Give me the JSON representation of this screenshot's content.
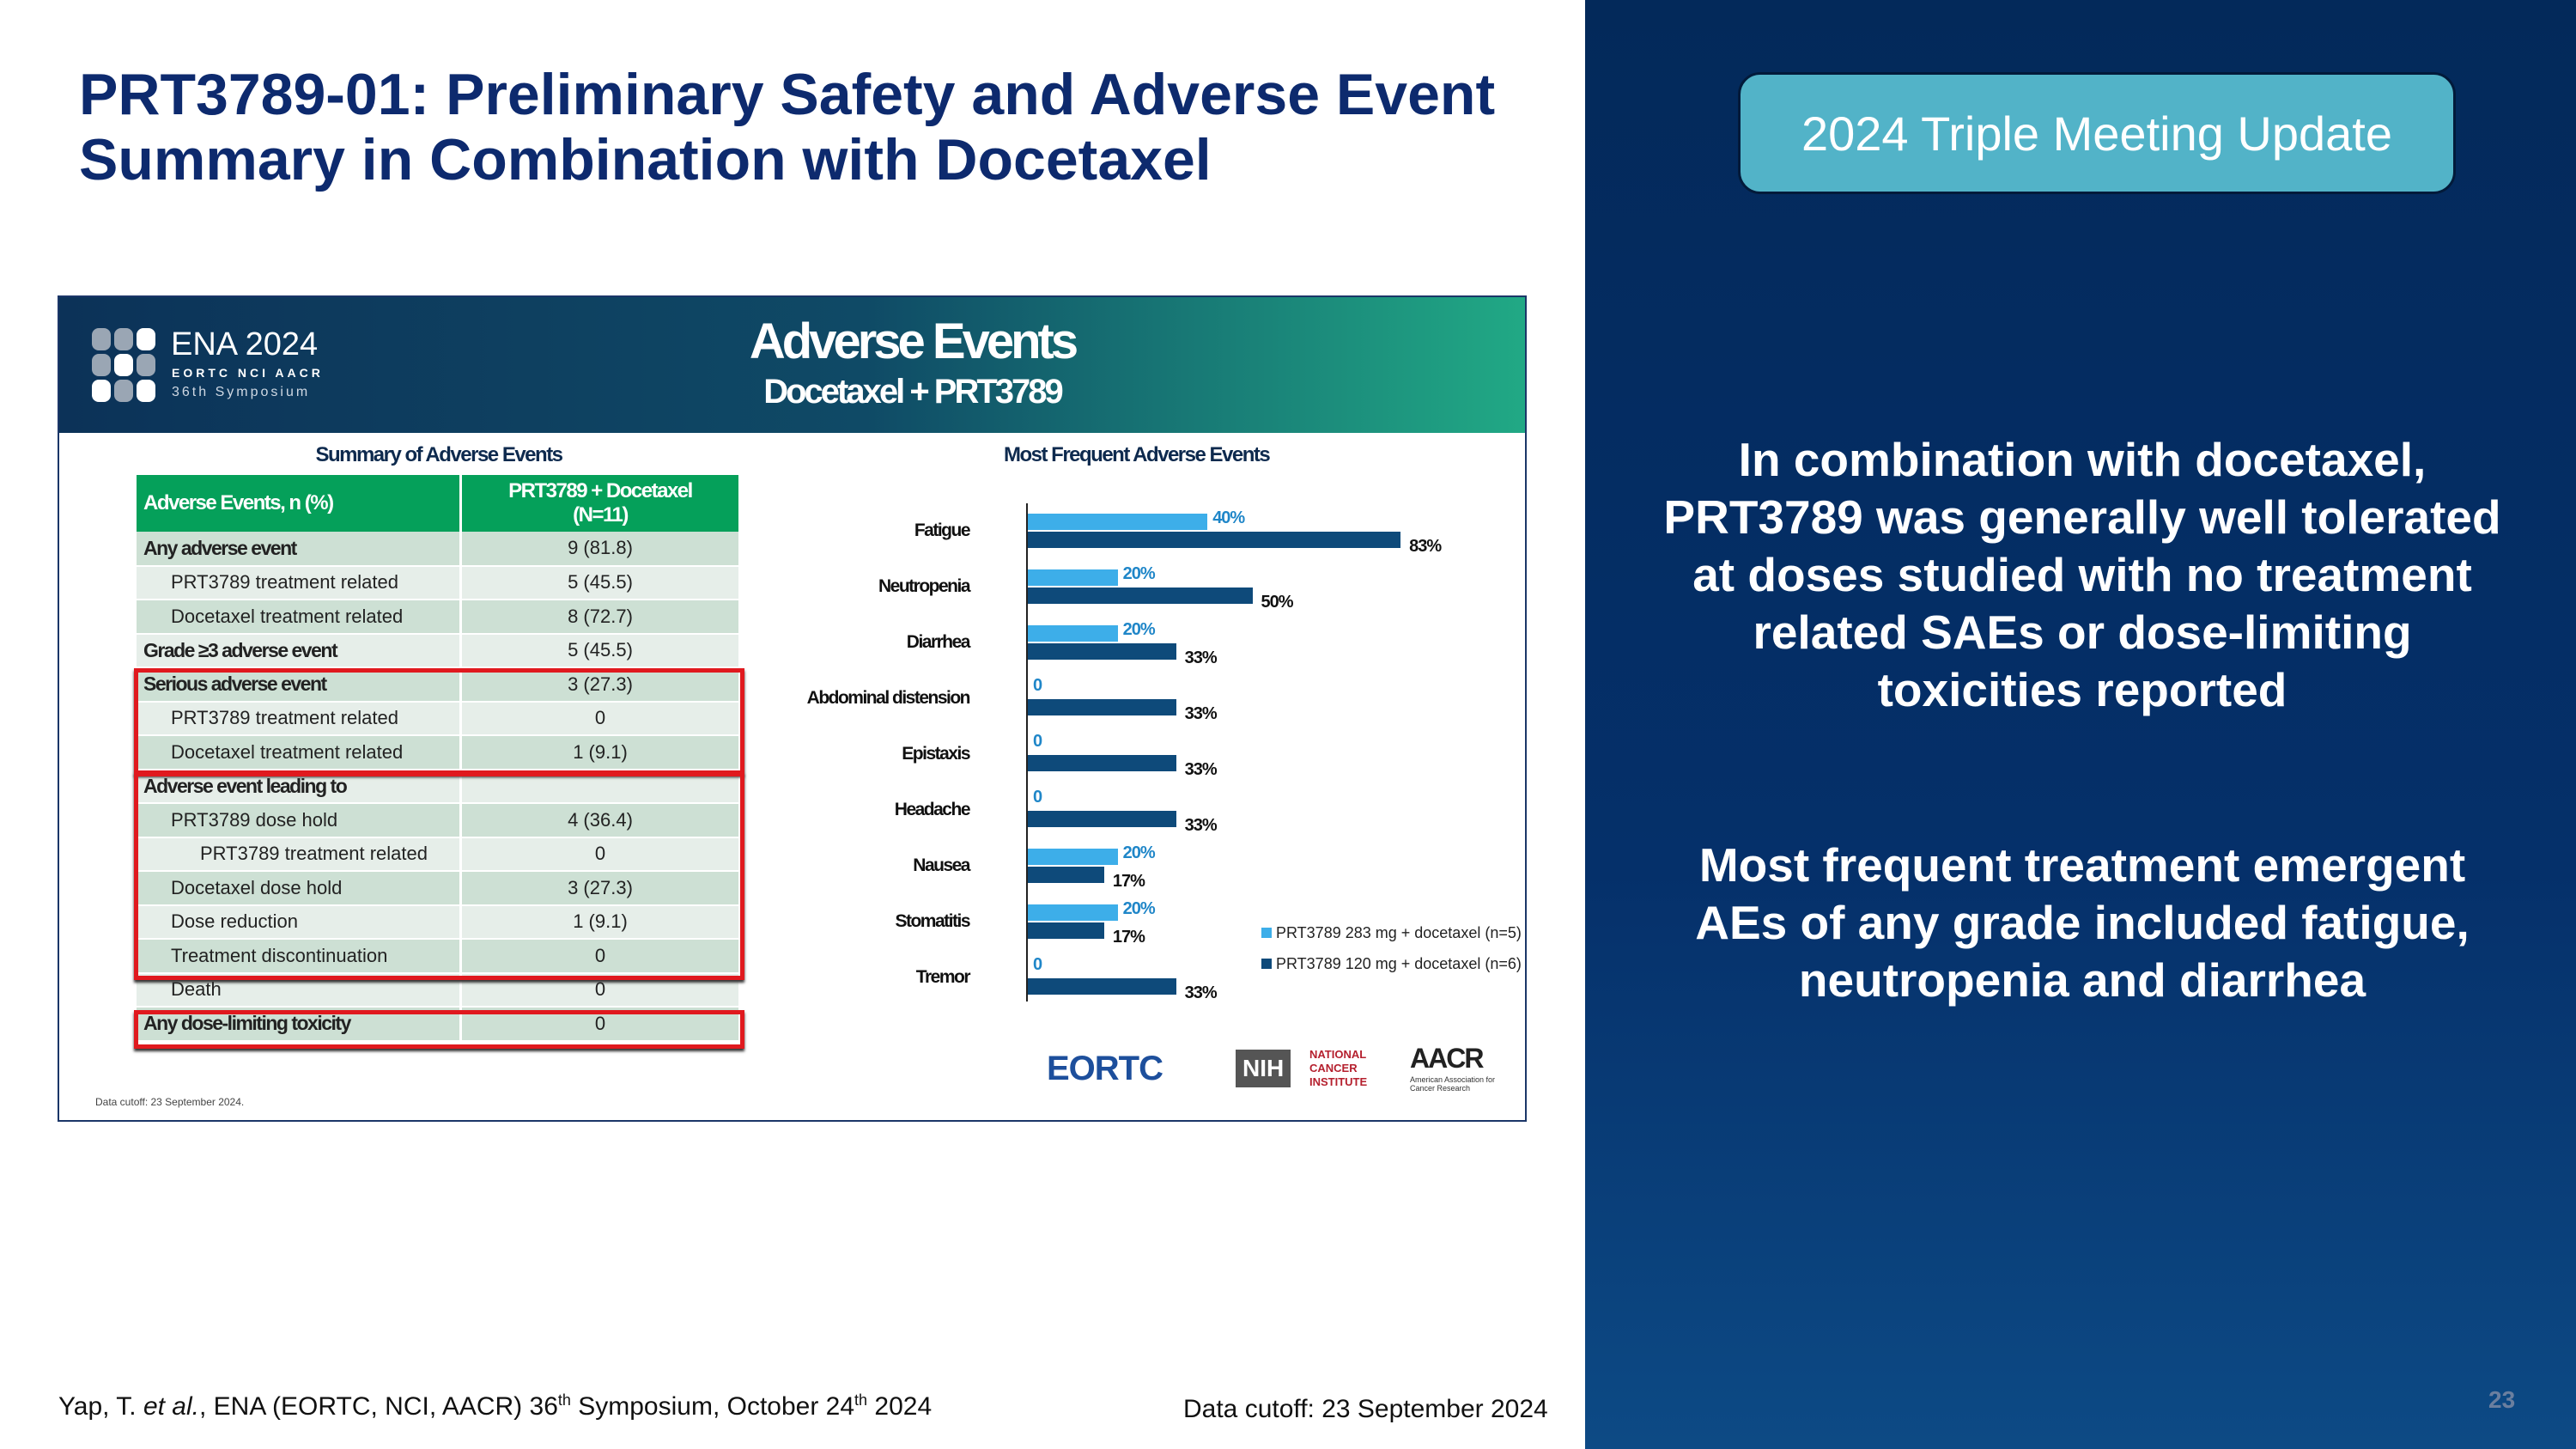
{
  "title": "PRT3789-01: Preliminary Safety and Adverse Event Summary in Combination with Docetaxel",
  "badge": "2024 Triple Meeting Update",
  "panel_text_1": "In combination with docetaxel, PRT3789 was generally well tolerated at doses studied with no treatment related SAEs or dose-limiting toxicities reported",
  "panel_text_2": "Most frequent treatment emergent AEs of any grade included fatigue, neutropenia and diarrhea",
  "footer": {
    "citation_pre": "Yap, T. ",
    "citation_etal": "et al.",
    "citation_mid": ", ENA (EORTC, NCI, AACR) 36",
    "sup1": "th",
    "citation_mid2": " Symposium, October 24",
    "sup2": "th",
    "citation_end": " 2024",
    "cutoff": "Data cutoff: 23 September 2024",
    "page": "23"
  },
  "embedded": {
    "ena": "ENA 2024",
    "ena_orgs": "EORTC  NCI  AACR",
    "ena_sym": "36th Symposium",
    "banner_title": "Adverse Events",
    "banner_subtitle": "Docetaxel + PRT3789",
    "table_title": "Summary of Adverse Events",
    "col1": "Adverse Events, n (%)",
    "col2a": "PRT3789 + Docetaxel",
    "col2b": "(N=11)",
    "rows": [
      {
        "label": "Any adverse event",
        "value": "9 (81.8)"
      },
      {
        "label": "PRT3789 treatment related",
        "value": "5 (45.5)"
      },
      {
        "label": "Docetaxel treatment related",
        "value": "8 (72.7)"
      },
      {
        "label": "Grade ≥3 adverse event",
        "value": "5 (45.5)"
      },
      {
        "label": "Serious adverse event",
        "value": "3 (27.3)"
      },
      {
        "label": "PRT3789 treatment related",
        "value": "0"
      },
      {
        "label": "Docetaxel treatment related",
        "value": "1 (9.1)"
      },
      {
        "label": "Adverse event leading to",
        "value": ""
      },
      {
        "label": "PRT3789 dose hold",
        "value": "4 (36.4)"
      },
      {
        "label": "PRT3789 treatment related",
        "value": "0"
      },
      {
        "label": "Docetaxel dose hold",
        "value": "3 (27.3)"
      },
      {
        "label": "Dose reduction",
        "value": "1 (9.1)"
      },
      {
        "label": "Treatment discontinuation",
        "value": "0"
      },
      {
        "label": "Death",
        "value": "0"
      },
      {
        "label": "Any dose-limiting toxicity",
        "value": "0"
      }
    ],
    "cutoff": "Data cutoff: 23 September 2024.",
    "logos": {
      "eortc": "EORTC",
      "nih": "NIH",
      "nci": "NATIONAL CANCER INSTITUTE",
      "aacr": "AACR",
      "aacr_sub": "American Association for Cancer Research"
    }
  },
  "chart_data": {
    "type": "bar",
    "orientation": "horizontal",
    "title": "Most Frequent Adverse Events",
    "categories": [
      "Fatigue",
      "Neutropenia",
      "Diarrhea",
      "Abdominal distension",
      "Epistaxis",
      "Headache",
      "Nausea",
      "Stomatitis",
      "Tremor"
    ],
    "series": [
      {
        "name": "PRT3789 283 mg + docetaxel (n=5)",
        "color": "#3daee9",
        "values": [
          40,
          20,
          20,
          0,
          0,
          0,
          20,
          20,
          0
        ],
        "labels": [
          "40%",
          "20%",
          "20%",
          "0",
          "0",
          "0",
          "20%",
          "20%",
          "0"
        ]
      },
      {
        "name": "PRT3789 120 mg + docetaxel (n=6)",
        "color": "#0e4a7a",
        "values": [
          83,
          50,
          33,
          33,
          33,
          33,
          17,
          17,
          33
        ],
        "labels": [
          "83%",
          "50%",
          "33%",
          "33%",
          "33%",
          "33%",
          "17%",
          "17%",
          "33%"
        ]
      }
    ],
    "legend": "bottom-right"
  }
}
